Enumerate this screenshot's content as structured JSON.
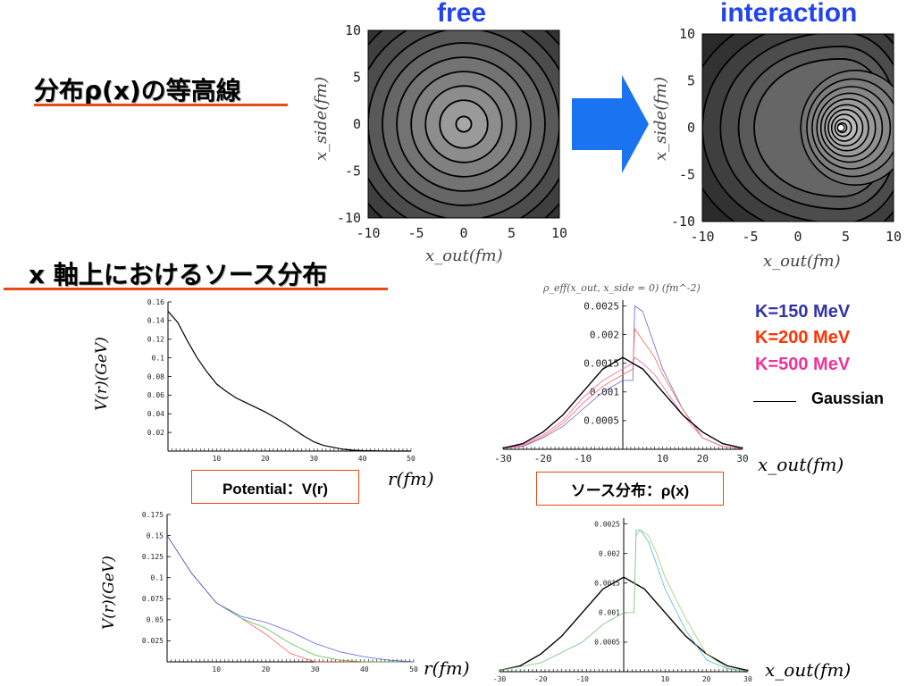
{
  "headings": {
    "contour": "分布ρ(x)の等高線",
    "xaxis_source": "x 軸上におけるソース分布"
  },
  "labels": {
    "potential": "Potential：V(r)",
    "source": "ソース分布：ρ(x)"
  },
  "legend": {
    "k150": "K=150 MeV",
    "k200": "K=200 MeV",
    "k500": "K=500 MeV",
    "gaussian": "Gaussian"
  },
  "colors": {
    "k150": "#3333aa",
    "k200": "#ff3300",
    "k500": "#ee3399",
    "accent": "#e84a12",
    "arrow": "#1a73f0"
  },
  "chart_data": [
    {
      "type": "heatmap",
      "title": "free",
      "xlabel": "x_out(fm)",
      "ylabel": "x_side(fm)",
      "xlim": [
        -10,
        10
      ],
      "ylim": [
        -10,
        10
      ],
      "xticks": [
        "-10",
        "-5",
        "0",
        "5",
        "10"
      ],
      "yticks": [
        "10",
        "5",
        "0",
        "-5",
        "-10"
      ],
      "center": [
        0,
        0
      ]
    },
    {
      "type": "heatmap",
      "title": "interaction",
      "xlabel": "x_out(fm)",
      "ylabel": "x_side(fm)",
      "xlim": [
        -10,
        10
      ],
      "ylim": [
        -10,
        10
      ],
      "xticks": [
        "-10",
        "-5",
        "0",
        "5",
        "10"
      ],
      "yticks": [
        "10",
        "5",
        "0",
        "-5",
        "-10"
      ],
      "center": [
        4.5,
        0
      ]
    },
    {
      "type": "line",
      "xlabel": "r(fm)",
      "ylabel": "V(r)(GeV)",
      "xlim": [
        0,
        50
      ],
      "ylim": [
        0,
        0.16
      ],
      "xticks": [
        "10",
        "20",
        "30",
        "40",
        "50"
      ],
      "yticks": [
        "0.02",
        "0.04",
        "0.06",
        "0.08",
        "0.1",
        "0.12",
        "0.14",
        "0.16"
      ],
      "series": [
        {
          "x": [
            0,
            2,
            4,
            6,
            8,
            10,
            12,
            14,
            16,
            18,
            20,
            22,
            24,
            26,
            28,
            30,
            32,
            34,
            36,
            38,
            40,
            45,
            50
          ],
          "y": [
            0.15,
            0.138,
            0.118,
            0.1,
            0.085,
            0.072,
            0.064,
            0.057,
            0.052,
            0.047,
            0.042,
            0.036,
            0.03,
            0.023,
            0.016,
            0.01,
            0.006,
            0.004,
            0.002,
            0.001,
            0.0005,
            0.0,
            0.0
          ]
        }
      ]
    },
    {
      "type": "line",
      "title": "ρ_eff(x_out, x_side = 0) (fm^-2)",
      "xlabel": "x_out(fm)",
      "xlim": [
        -30,
        30
      ],
      "ylim": [
        0,
        0.0026
      ],
      "xticks": [
        "-30",
        "-20",
        "-10",
        "10",
        "20",
        "30"
      ],
      "yticks": [
        "0.0005",
        "0.001",
        "0.0015",
        "0.002",
        "0.0025"
      ],
      "series": [
        {
          "name": "K=150 MeV",
          "x": [
            -30,
            -25,
            -20,
            -15,
            -10,
            -5,
            0,
            2.5,
            3,
            5,
            8,
            10,
            15,
            20,
            25,
            30
          ],
          "y": [
            2e-05,
            5e-05,
            0.0002,
            0.0004,
            0.0007,
            0.001,
            0.0012,
            0.0012,
            0.0025,
            0.0024,
            0.0018,
            0.0014,
            0.0007,
            0.0002,
            5e-05,
            1e-05
          ]
        },
        {
          "name": "K=200 MeV",
          "x": [
            -30,
            -25,
            -20,
            -15,
            -10,
            -5,
            0,
            2.5,
            3,
            5,
            8,
            10,
            15,
            20,
            25,
            30
          ],
          "y": [
            2e-05,
            6e-05,
            0.00022,
            0.00045,
            0.0008,
            0.0011,
            0.0013,
            0.0014,
            0.0021,
            0.0019,
            0.0016,
            0.0013,
            0.0007,
            0.0002,
            5e-05,
            1e-05
          ]
        },
        {
          "name": "K=500 MeV",
          "x": [
            -30,
            -25,
            -20,
            -15,
            -10,
            -5,
            0,
            2.5,
            3,
            5,
            8,
            10,
            15,
            20,
            25,
            30
          ],
          "y": [
            2e-05,
            8e-05,
            0.00025,
            0.0005,
            0.0009,
            0.0012,
            0.0014,
            0.0015,
            0.0016,
            0.0015,
            0.0013,
            0.0011,
            0.0006,
            0.0002,
            5e-05,
            1e-05
          ]
        },
        {
          "name": "Gaussian",
          "x": [
            -30,
            -25,
            -20,
            -15,
            -10,
            -5,
            0,
            5,
            10,
            15,
            20,
            25,
            30
          ],
          "y": [
            2e-05,
            0.0001,
            0.0003,
            0.0006,
            0.001,
            0.0014,
            0.0016,
            0.0014,
            0.001,
            0.0006,
            0.0003,
            0.0001,
            2e-05
          ]
        }
      ]
    },
    {
      "type": "line",
      "xlabel": "r(fm)",
      "ylabel": "V(r)(GeV)",
      "xlim": [
        0,
        50
      ],
      "ylim": [
        0,
        0.175
      ],
      "xticks": [
        "10",
        "20",
        "30",
        "40",
        "50"
      ],
      "yticks": [
        "0.025",
        "0.05",
        "0.075",
        "0.1",
        "0.125",
        "0.15",
        "0.175"
      ],
      "series": [
        {
          "x": [
            0,
            5,
            10,
            15,
            20,
            25,
            30,
            35,
            40,
            45,
            50
          ],
          "y": [
            0.15,
            0.105,
            0.07,
            0.052,
            0.033,
            0.01,
            0.0,
            0.0,
            0.0,
            0.0,
            0.0
          ]
        },
        {
          "x": [
            0,
            5,
            10,
            15,
            20,
            25,
            30,
            35,
            40,
            45,
            50
          ],
          "y": [
            0.15,
            0.105,
            0.07,
            0.052,
            0.04,
            0.022,
            0.008,
            0.002,
            0.0,
            0.0,
            0.0
          ]
        },
        {
          "x": [
            0,
            5,
            10,
            15,
            20,
            25,
            30,
            35,
            40,
            45,
            50
          ],
          "y": [
            0.15,
            0.105,
            0.07,
            0.054,
            0.047,
            0.036,
            0.022,
            0.012,
            0.006,
            0.002,
            0.0
          ]
        }
      ]
    },
    {
      "type": "line",
      "xlabel": "x_out(fm)",
      "xlim": [
        -30,
        30
      ],
      "ylim": [
        0,
        0.0026
      ],
      "xticks": [
        "-30",
        "-20",
        "-10",
        "10",
        "20",
        "30"
      ],
      "yticks": [
        "0.0005",
        "0.001",
        "0.0015",
        "0.002",
        "0.0025"
      ],
      "series": [
        {
          "x": [
            -30,
            -25,
            -20,
            -15,
            -10,
            -5,
            0,
            5,
            10,
            15,
            20,
            25,
            30
          ],
          "y": [
            2e-05,
            0.0001,
            0.0003,
            0.0006,
            0.001,
            0.0014,
            0.0016,
            0.0014,
            0.001,
            0.0006,
            0.0003,
            0.0001,
            2e-05
          ]
        },
        {
          "x": [
            -30,
            -20,
            -10,
            -5,
            0,
            2.5,
            3,
            4,
            6,
            8,
            10,
            15,
            20,
            25,
            30
          ],
          "y": [
            2e-05,
            0.00015,
            0.0005,
            0.0008,
            0.001,
            0.001,
            0.0024,
            0.0024,
            0.0022,
            0.0018,
            0.0014,
            0.0007,
            0.0002,
            5e-05,
            1e-05
          ]
        },
        {
          "x": [
            -30,
            -20,
            -10,
            -5,
            0,
            2.5,
            3,
            4,
            6,
            8,
            10,
            15,
            20,
            25,
            30
          ],
          "y": [
            2e-05,
            0.00015,
            0.0005,
            0.0008,
            0.001,
            0.001,
            0.0023,
            0.0024,
            0.0023,
            0.002,
            0.0016,
            0.0009,
            0.0003,
            6e-05,
            1e-05
          ]
        }
      ]
    }
  ]
}
